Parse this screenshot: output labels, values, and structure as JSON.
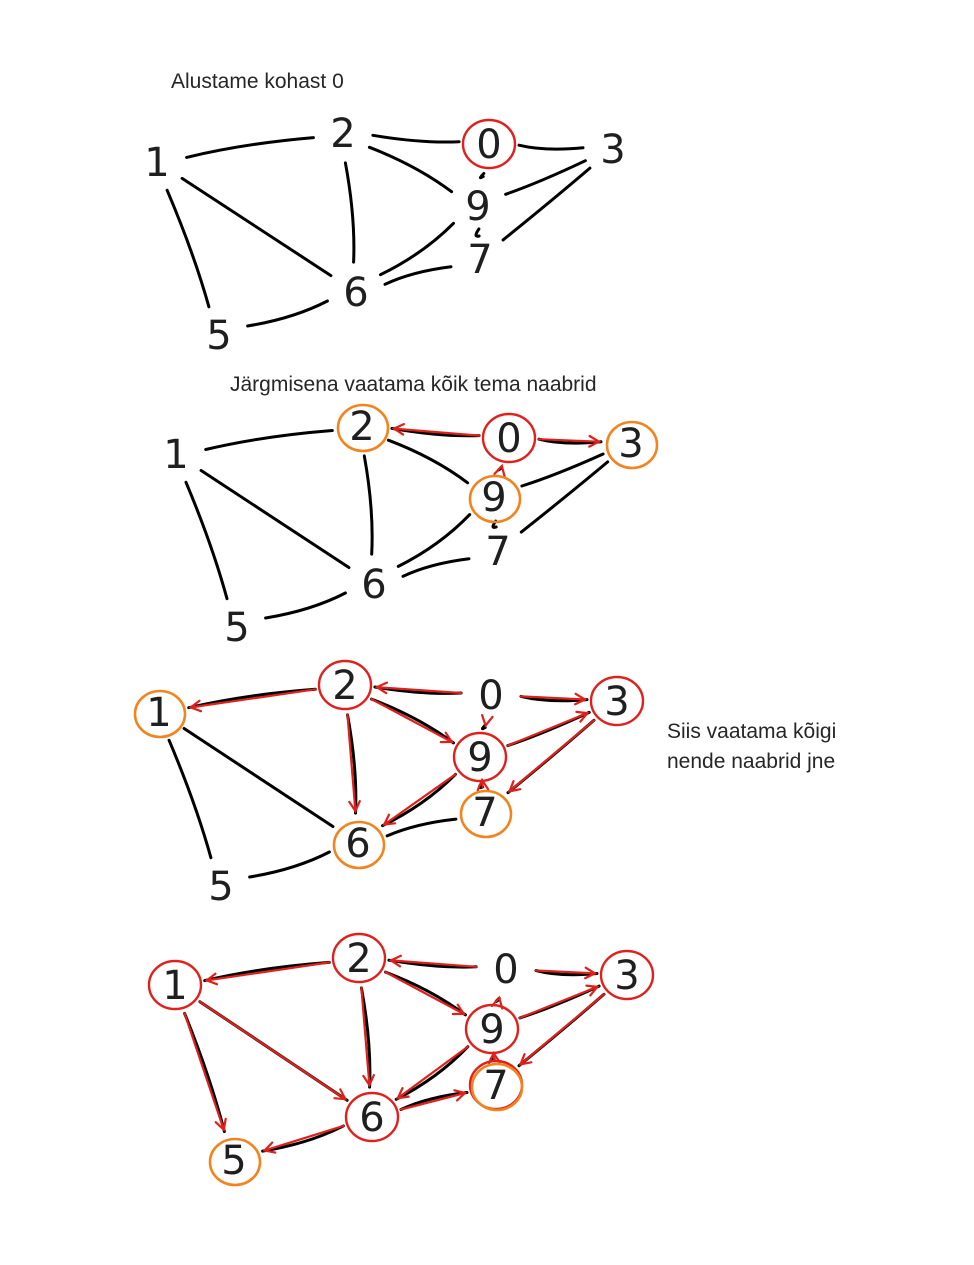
{
  "captions": {
    "step1": "Alustame kohast 0",
    "step2": "Järgmisena vaatama kõik tema naabrid",
    "step3_line1": "Siis vaatama kõigi",
    "step3_line2": "nende naabrid  jne"
  },
  "colors": {
    "edge": "#000000",
    "visited": "#e0201b",
    "frontier": "#f2841e"
  },
  "panels": [
    {
      "name": "panel-1",
      "nodes": [
        "0",
        "1",
        "2",
        "3",
        "5",
        "6",
        "7",
        "9"
      ],
      "red_circled": [
        "0"
      ],
      "orange_circled": []
    },
    {
      "name": "panel-2",
      "nodes": [
        "0",
        "1",
        "2",
        "3",
        "5",
        "6",
        "7",
        "9"
      ],
      "red_circled": [
        "0"
      ],
      "orange_circled": [
        "2",
        "3",
        "9"
      ]
    },
    {
      "name": "panel-3",
      "nodes": [
        "0",
        "1",
        "2",
        "3",
        "5",
        "6",
        "7",
        "9"
      ],
      "red_circled": [
        "2",
        "3",
        "9"
      ],
      "orange_circled": [
        "1",
        "6",
        "7"
      ]
    },
    {
      "name": "panel-4",
      "nodes": [
        "0",
        "1",
        "2",
        "3",
        "5",
        "6",
        "7",
        "9"
      ],
      "red_circled": [
        "1",
        "2",
        "3",
        "6",
        "7",
        "9"
      ],
      "orange_circled": [
        "5",
        "7"
      ]
    }
  ]
}
